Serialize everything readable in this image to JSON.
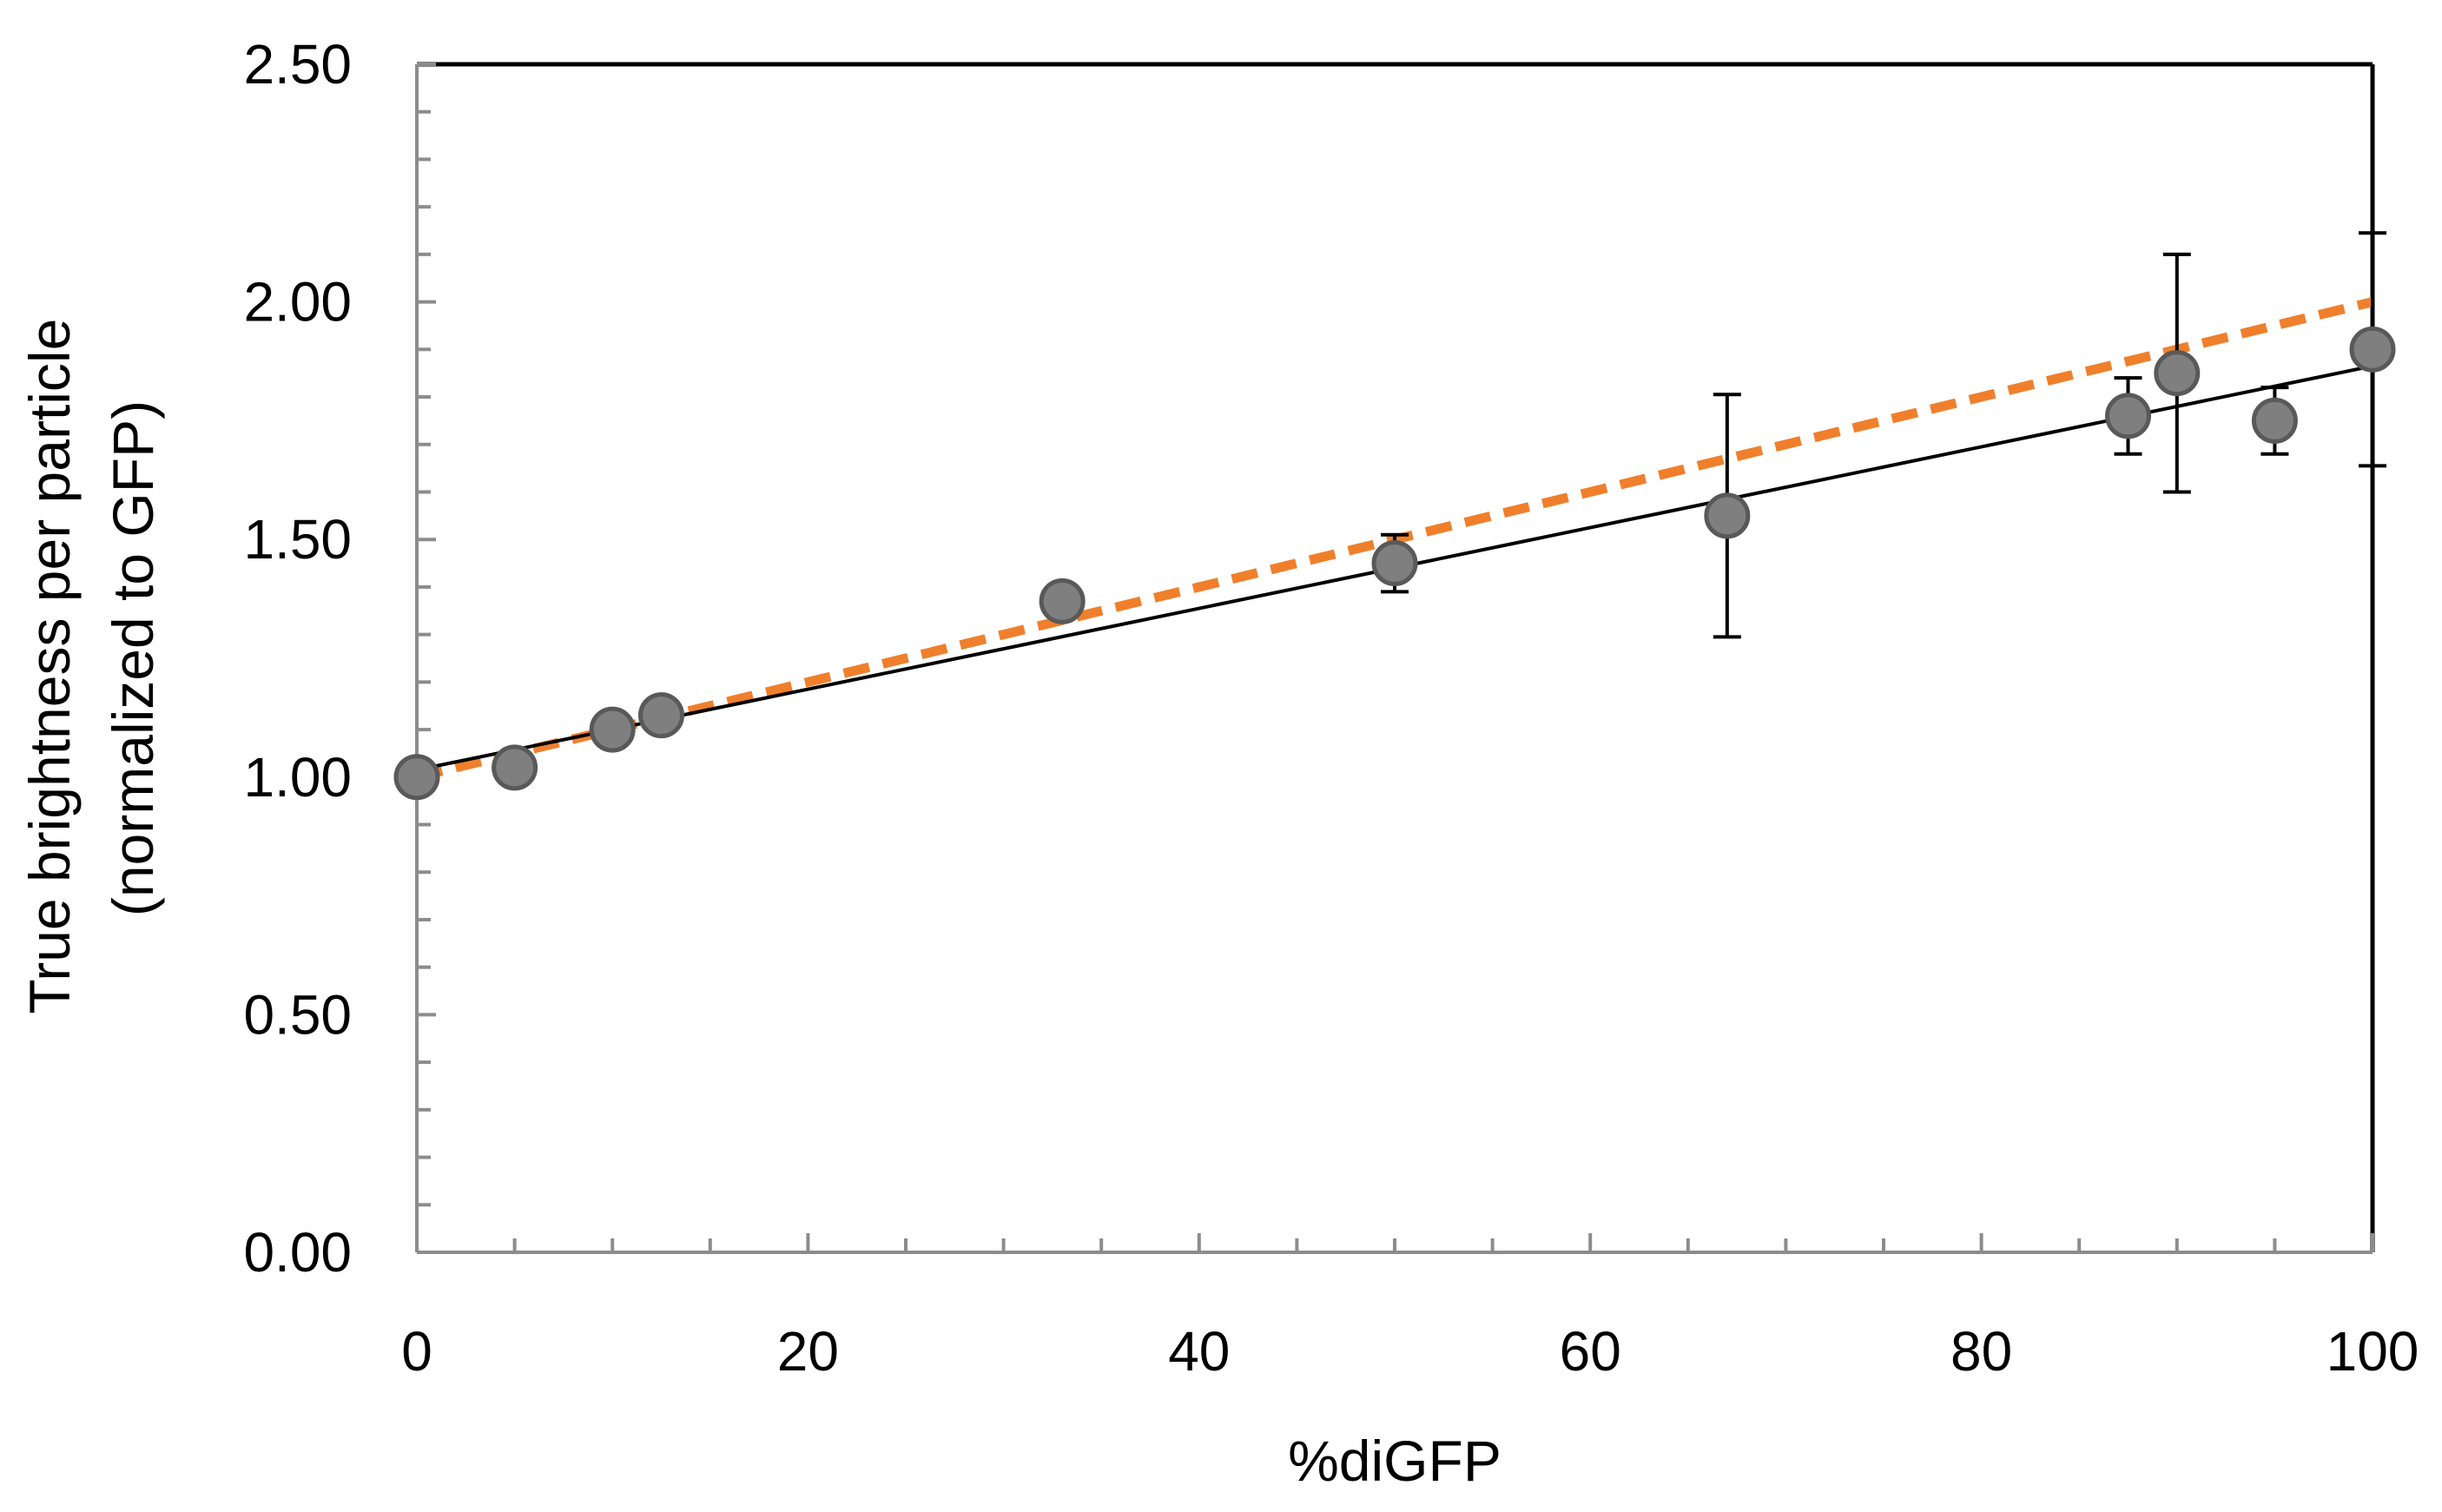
{
  "chart_data": {
    "type": "scatter",
    "xlabel": "%diGFP",
    "ylabel_lines": [
      "True brightness per particle",
      "(normalized to GFP)"
    ],
    "xlim": [
      0,
      100
    ],
    "ylim": [
      0,
      2.5
    ],
    "x_ticks": [
      0,
      20,
      40,
      60,
      80,
      100
    ],
    "x_tick_labels": [
      "0",
      "20",
      "40",
      "60",
      "80",
      "100"
    ],
    "y_ticks": [
      0,
      0.5,
      1.0,
      1.5,
      2.0,
      2.5
    ],
    "y_tick_labels": [
      "0.00",
      "0.50",
      "1.00",
      "1.50",
      "2.00",
      "2.50"
    ],
    "grid": false,
    "points": [
      {
        "x": 0,
        "y": 1.0,
        "err": 0
      },
      {
        "x": 5,
        "y": 1.02,
        "err": 0
      },
      {
        "x": 10,
        "y": 1.1,
        "err": 0
      },
      {
        "x": 12.5,
        "y": 1.13,
        "err": 0
      },
      {
        "x": 33,
        "y": 1.37,
        "err": 0.03
      },
      {
        "x": 50,
        "y": 1.45,
        "err": 0.06
      },
      {
        "x": 67,
        "y": 1.55,
        "err": 0.255
      },
      {
        "x": 87.5,
        "y": 1.76,
        "err": 0.08
      },
      {
        "x": 90,
        "y": 1.85,
        "err": 0.25
      },
      {
        "x": 95,
        "y": 1.75,
        "err": 0.07
      },
      {
        "x": 100,
        "y": 1.9,
        "err": 0.245
      }
    ],
    "fit_line": {
      "x": [
        0,
        100
      ],
      "y": [
        1.015,
        1.865
      ],
      "color": "#000000"
    },
    "reference_line": {
      "x": [
        0,
        100
      ],
      "y": [
        1.0,
        2.0
      ],
      "color": "#F07F2C",
      "style": "dashed"
    },
    "marker_color": "#7F7F7F"
  }
}
